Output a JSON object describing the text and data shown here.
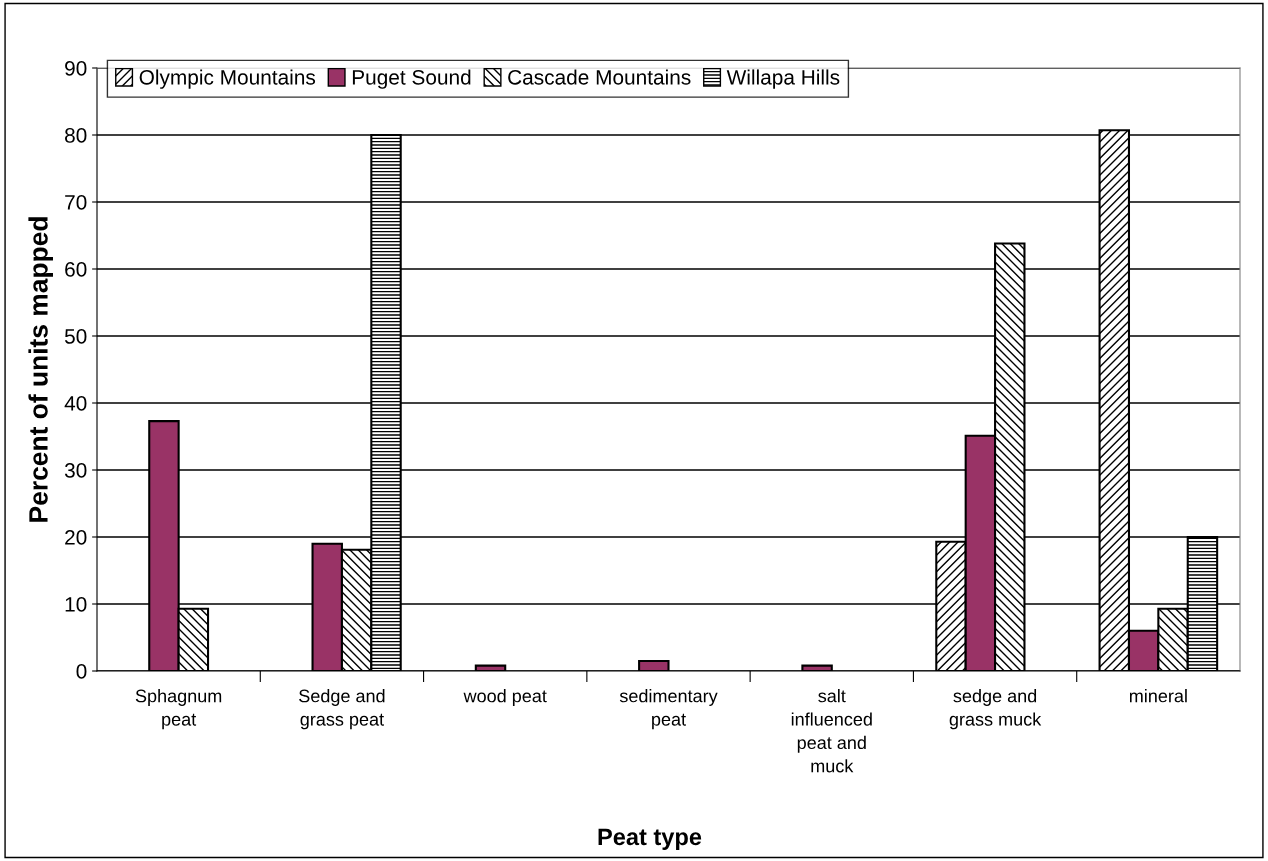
{
  "chart_data": {
    "type": "bar",
    "xlabel": "Peat type",
    "ylabel": "Percent of units mapped",
    "categories": [
      "Sphagnum\npeat",
      "Sedge and\ngrass peat",
      "wood peat",
      "sedimentary\npeat",
      "salt\ninfluenced\npeat and\nmuck",
      "sedge and\ngrass muck",
      "mineral"
    ],
    "series": [
      {
        "name": "Olympic Mountains",
        "color": "#000000",
        "values": [
          0,
          0,
          0,
          0,
          0,
          19.3,
          80.7
        ]
      },
      {
        "name": "Puget Sound",
        "color": "#993366",
        "values": [
          37.3,
          19,
          0.8,
          1.5,
          0.8,
          35.1,
          6
        ]
      },
      {
        "name": "Cascade Mountains",
        "color": "#000000",
        "values": [
          9.3,
          18.1,
          0,
          0,
          0,
          63.8,
          9.3
        ]
      },
      {
        "name": "Willapa Hills",
        "color": "#000000",
        "values": [
          0,
          80,
          0,
          0,
          0,
          0,
          20
        ]
      }
    ],
    "ylim": [
      0,
      90
    ],
    "yticks": [
      0,
      10,
      20,
      30,
      40,
      50,
      60,
      70,
      80,
      90
    ],
    "grid": "y",
    "legend": "top left"
  }
}
